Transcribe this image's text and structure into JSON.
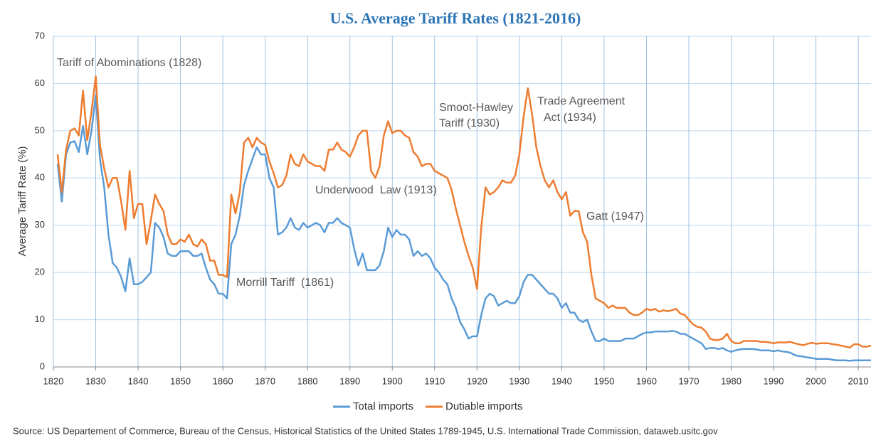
{
  "chart_data": {
    "type": "line",
    "title": "U.S. Average Tariff Rates (1821-2016)",
    "y_label": "Average Tariff Rate (%)",
    "source": "Source: US Departement of Commerce, Bureau of the Census, Historical Statistics of the United States 1789-1945, U.S. International Trade Commission, dataweb.usitc.gov",
    "annotations": [
      "Tariff of Abominations (1828)",
      "Morrill Tariff  (1861)",
      "Underwood  Law (1913)",
      "Smoot-Hawley",
      "Tariff (1930)",
      "Trade Agreement",
      "Act (1934)",
      "Gatt (1947)"
    ],
    "xlim": [
      1820,
      2013
    ],
    "ylim": [
      0,
      70
    ],
    "xticks": [
      1820,
      1830,
      1840,
      1850,
      1860,
      1870,
      1880,
      1890,
      1900,
      1910,
      1920,
      1930,
      1940,
      1950,
      1960,
      1970,
      1980,
      1990,
      2000,
      2010
    ],
    "yticks": [
      0,
      10,
      20,
      30,
      40,
      50,
      60,
      70
    ],
    "grid": true,
    "x": [
      1821,
      1822,
      1823,
      1824,
      1825,
      1826,
      1827,
      1828,
      1829,
      1830,
      1831,
      1832,
      1833,
      1834,
      1835,
      1836,
      1837,
      1838,
      1839,
      1840,
      1841,
      1842,
      1843,
      1844,
      1845,
      1846,
      1847,
      1848,
      1849,
      1850,
      1851,
      1852,
      1853,
      1854,
      1855,
      1856,
      1857,
      1858,
      1859,
      1860,
      1861,
      1862,
      1863,
      1864,
      1865,
      1866,
      1867,
      1868,
      1869,
      1870,
      1871,
      1872,
      1873,
      1874,
      1875,
      1876,
      1877,
      1878,
      1879,
      1880,
      1881,
      1882,
      1883,
      1884,
      1885,
      1886,
      1887,
      1888,
      1889,
      1890,
      1891,
      1892,
      1893,
      1894,
      1895,
      1896,
      1897,
      1898,
      1899,
      1900,
      1901,
      1902,
      1903,
      1904,
      1905,
      1906,
      1907,
      1908,
      1909,
      1910,
      1911,
      1912,
      1913,
      1914,
      1915,
      1916,
      1917,
      1918,
      1919,
      1920,
      1921,
      1922,
      1923,
      1924,
      1925,
      1926,
      1927,
      1928,
      1929,
      1930,
      1931,
      1932,
      1933,
      1934,
      1935,
      1936,
      1937,
      1938,
      1939,
      1940,
      1941,
      1942,
      1943,
      1944,
      1945,
      1946,
      1947,
      1948,
      1949,
      1950,
      1951,
      1952,
      1953,
      1954,
      1955,
      1956,
      1957,
      1958,
      1959,
      1960,
      1961,
      1962,
      1963,
      1964,
      1965,
      1966,
      1967,
      1968,
      1969,
      1970,
      1971,
      1972,
      1973,
      1974,
      1975,
      1976,
      1977,
      1978,
      1979,
      1980,
      1981,
      1982,
      1983,
      1984,
      1985,
      1986,
      1987,
      1988,
      1989,
      1990,
      1991,
      1992,
      1993,
      1994,
      1995,
      1996,
      1997,
      1998,
      1999,
      2000,
      2001,
      2002,
      2003,
      2004,
      2005,
      2006,
      2007,
      2008,
      2009,
      2010,
      2011,
      2012,
      2013
    ],
    "series": [
      {
        "name": "Total imports",
        "color": "#5b9bd5",
        "values": [
          43,
          35,
          45,
          47.5,
          47.8,
          45.5,
          51,
          45,
          50,
          57.5,
          44,
          38,
          28,
          22,
          21,
          19,
          16,
          23,
          17.5,
          17.5,
          18,
          19,
          20,
          30.5,
          29.5,
          27.5,
          24,
          23.5,
          23.5,
          24.5,
          24.5,
          24.5,
          23.5,
          23.5,
          24,
          21,
          18.5,
          17.5,
          15.5,
          15.5,
          14.5,
          26,
          28,
          32,
          38.5,
          41.5,
          44,
          46.5,
          45,
          45,
          40,
          38,
          28,
          28.5,
          29.5,
          31.5,
          29.5,
          29,
          30.5,
          29.5,
          30,
          30.5,
          30,
          28.5,
          30.5,
          30.5,
          31.5,
          30.5,
          30,
          29.5,
          25,
          21.5,
          24,
          20.5,
          20.5,
          20.5,
          21.5,
          24.5,
          29.5,
          27.5,
          29,
          28,
          28,
          27,
          23.5,
          24.5,
          23.5,
          24,
          23,
          21,
          20,
          18.5,
          17.5,
          14.5,
          12.5,
          9.5,
          8,
          6,
          6.5,
          6.5,
          11,
          14.5,
          15.5,
          15,
          13,
          13.5,
          14,
          13.5,
          13.5,
          15,
          18,
          19.5,
          19.5,
          18.5,
          17.5,
          16.5,
          15.5,
          15.5,
          14.5,
          12.5,
          13.5,
          11.5,
          11.5,
          10,
          9.5,
          10,
          7.5,
          5.5,
          5.5,
          6,
          5.5,
          5.5,
          5.5,
          5.5,
          6,
          6,
          6,
          6.5,
          7,
          7.3,
          7.3,
          7.5,
          7.5,
          7.5,
          7.5,
          7.6,
          7.5,
          7,
          7,
          6.5,
          6,
          5.5,
          5,
          3.8,
          4,
          4,
          3.8,
          4,
          3.5,
          3.2,
          3.5,
          3.7,
          3.8,
          3.8,
          3.8,
          3.7,
          3.5,
          3.5,
          3.5,
          3.3,
          3.5,
          3.3,
          3.2,
          3,
          2.5,
          2.3,
          2.2,
          2,
          1.9,
          1.7,
          1.7,
          1.7,
          1.7,
          1.5,
          1.4,
          1.4,
          1.4,
          1.3,
          1.4,
          1.4,
          1.4,
          1.4,
          1.4
        ]
      },
      {
        "name": "Dutiable imports",
        "color": "#ed7d31",
        "values": [
          45,
          37,
          46,
          50,
          50.5,
          49,
          58.5,
          48,
          54,
          61.5,
          47,
          42,
          38,
          40,
          40,
          35,
          29,
          41.5,
          31.5,
          34.5,
          34.5,
          26,
          31,
          36.5,
          34.5,
          33,
          28,
          26,
          26,
          27,
          26.5,
          28,
          26,
          25.5,
          27,
          26,
          22.5,
          22.5,
          19.5,
          19.5,
          19,
          36.5,
          32.5,
          37,
          47.5,
          48.5,
          46.5,
          48.5,
          47.5,
          47,
          43.5,
          41,
          38,
          38.5,
          40.5,
          45,
          43,
          42.5,
          45,
          43.5,
          43,
          42.5,
          42.5,
          41.5,
          46,
          46,
          47.5,
          46,
          45.5,
          44.5,
          46.5,
          49,
          50,
          50,
          41.5,
          40,
          42.5,
          49,
          52,
          49.5,
          50,
          50,
          49,
          48.5,
          45.5,
          44.5,
          42.5,
          43,
          43,
          41.5,
          41,
          40.5,
          40,
          37.5,
          33.5,
          30,
          26.5,
          23.5,
          21,
          16.5,
          29.5,
          38,
          36.5,
          37,
          38,
          39.5,
          39,
          39,
          40.5,
          45,
          53,
          59,
          53.5,
          46.5,
          42.5,
          39.5,
          38,
          39.5,
          37,
          35.5,
          37,
          32,
          33,
          33,
          28.5,
          26.5,
          19.5,
          14.5,
          14,
          13.5,
          12.5,
          13,
          12.5,
          12.5,
          12.5,
          11.5,
          11,
          11,
          11.5,
          12.3,
          12,
          12.3,
          11.7,
          12,
          11.8,
          12,
          12.3,
          11.3,
          11,
          10,
          9,
          8.5,
          8.3,
          7.5,
          6,
          5.7,
          5.7,
          6,
          7,
          5.5,
          5,
          5,
          5.5,
          5.5,
          5.5,
          5.5,
          5.3,
          5.3,
          5.2,
          5,
          5.2,
          5.2,
          5.2,
          5.3,
          5,
          4.8,
          4.6,
          4.9,
          5.1,
          4.9,
          5,
          5,
          5,
          4.8,
          4.7,
          4.5,
          4.3,
          4.1,
          4.8,
          4.8,
          4.3,
          4.3,
          4.5
        ]
      }
    ]
  }
}
